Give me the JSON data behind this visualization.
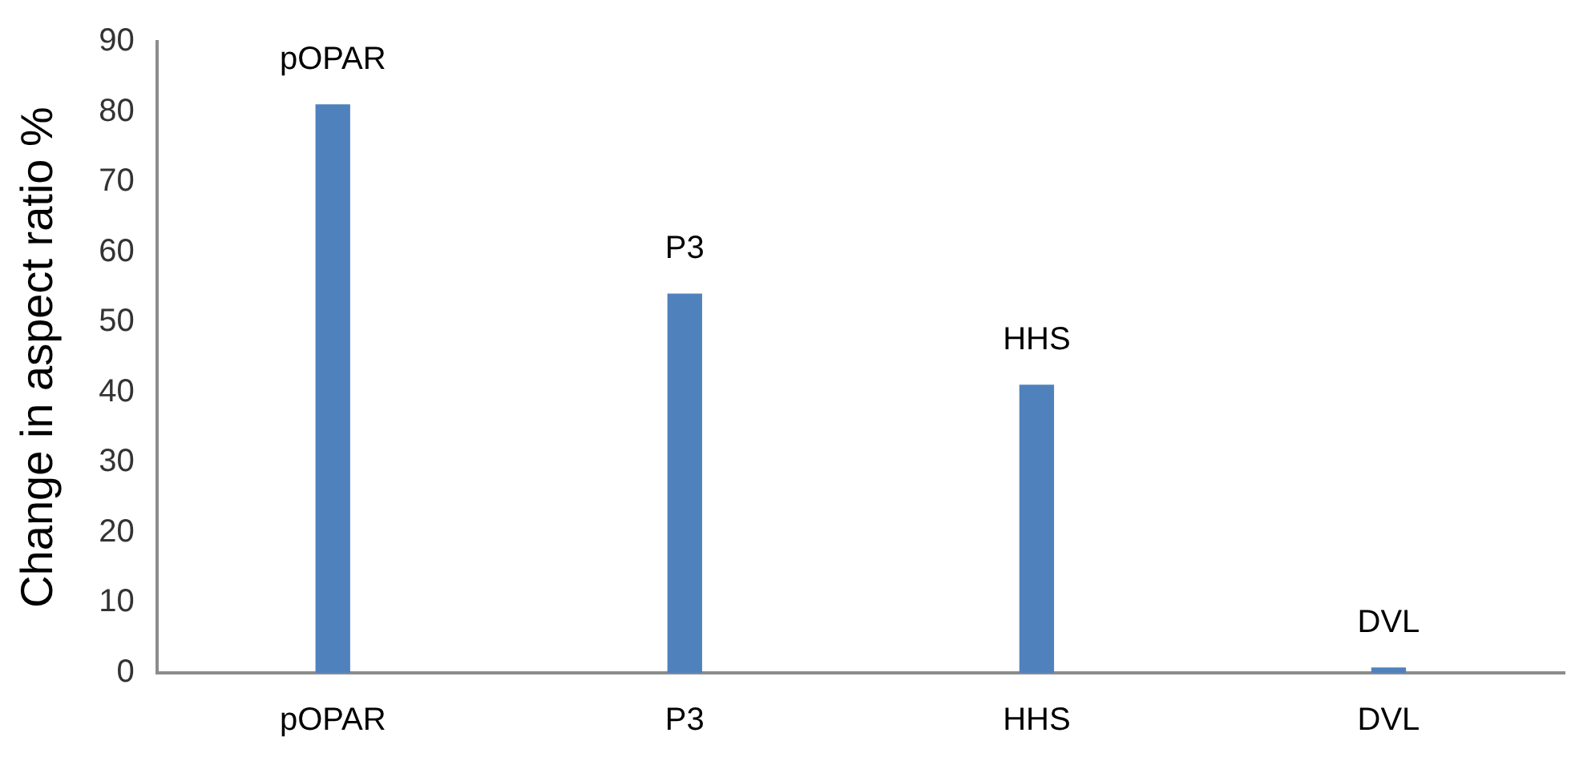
{
  "chart_data": {
    "type": "bar",
    "ylabel": "Change in aspect ratio %",
    "categories": [
      "pOPAR",
      "P3",
      "HHS",
      "DVL"
    ],
    "values": [
      81,
      54,
      41,
      0.7
    ],
    "color": "#4f81bd",
    "ylim": [
      0,
      90
    ],
    "yticks": [
      0,
      10,
      20,
      30,
      40,
      50,
      60,
      70,
      80,
      90
    ],
    "grid": false,
    "annotations": [
      {
        "text": "pOPAR",
        "x": "pOPAR",
        "y": 81
      },
      {
        "text": "P3",
        "x": "P3",
        "y": 54
      },
      {
        "text": "HHS",
        "x": "HHS",
        "y": 41
      },
      {
        "text": "DVL",
        "x": "DVL",
        "y": 0.7
      }
    ]
  }
}
